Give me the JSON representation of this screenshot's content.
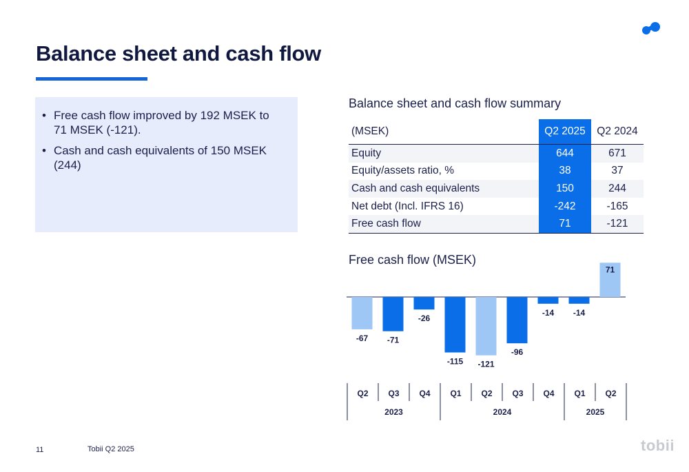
{
  "title": "Balance sheet and cash flow",
  "bullets": [
    "Free cash flow improved by 192 MSEK to 71 MSEK (-121).",
    "Cash and cash equivalents of 150 MSEK (244)"
  ],
  "bullet_symbol": "•",
  "summary": {
    "title": "Balance sheet and cash flow summary",
    "columns": [
      "(MSEK)",
      "Q2 2025",
      "Q2 2024"
    ],
    "rows": [
      [
        "Equity",
        "644",
        "671"
      ],
      [
        "Equity/assets ratio, %",
        "38",
        "37"
      ],
      [
        "Cash and cash equivalents",
        "150",
        "244"
      ],
      [
        "Net debt (Incl. IFRS 16)",
        "-242",
        "-165"
      ],
      [
        "Free cash flow",
        "71",
        "-121"
      ]
    ],
    "highlight_color": "#0a6ee8"
  },
  "chart_data": {
    "type": "bar",
    "title": "Free cash flow (MSEK)",
    "categories": [
      "Q2",
      "Q3",
      "Q4",
      "Q1",
      "Q2",
      "Q3",
      "Q4",
      "Q1",
      "Q2"
    ],
    "year_groups": [
      {
        "label": "2023",
        "count": 3
      },
      {
        "label": "2024",
        "count": 4
      },
      {
        "label": "2025",
        "count": 2
      }
    ],
    "values": [
      -67,
      -71,
      -26,
      -115,
      -121,
      -96,
      -14,
      -14,
      71
    ],
    "highlight": [
      true,
      false,
      false,
      false,
      true,
      false,
      false,
      false,
      true
    ],
    "colors": {
      "normal": "#0a6ee8",
      "highlight": "#9ec7f5"
    }
  },
  "footer": {
    "page": "11",
    "text": "Tobii Q2 2025",
    "brand": "tobii"
  },
  "colors": {
    "accent": "#1565d8",
    "panel": "#e6ecfc",
    "text": "#1a1f4a"
  }
}
